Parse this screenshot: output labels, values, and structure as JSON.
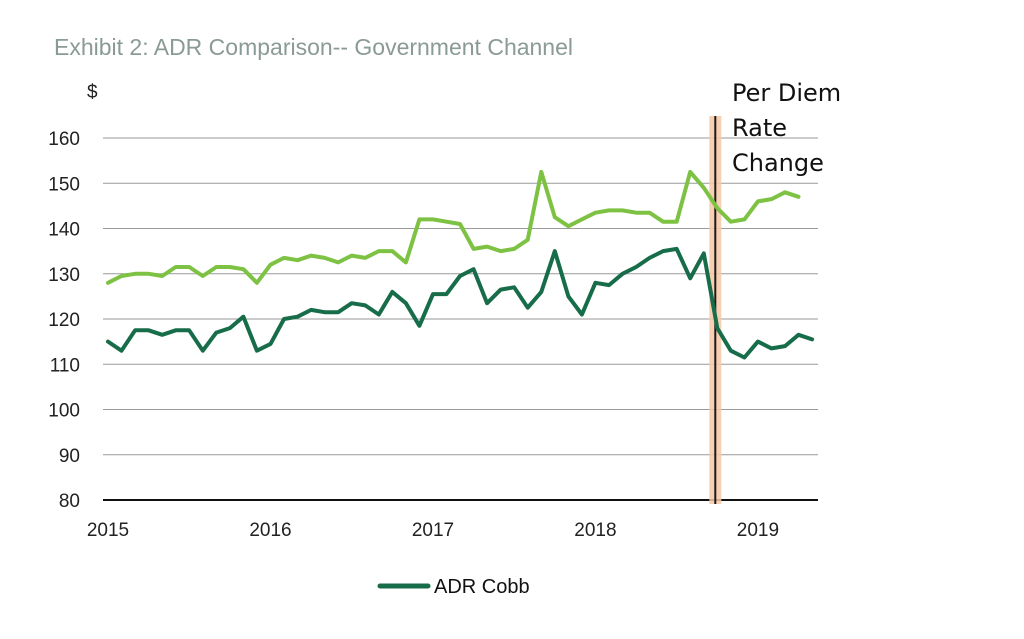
{
  "chart_data": {
    "type": "line",
    "title": "Exhibit 2: ADR Comparison-- Government Channel",
    "ylabel": "$",
    "xlabel": "",
    "ylim": [
      80,
      160
    ],
    "yticks": [
      80,
      90,
      100,
      110,
      120,
      130,
      140,
      150,
      160
    ],
    "xticks": [
      "2015",
      "2016",
      "2017",
      "2018",
      "2019"
    ],
    "grid": true,
    "legend_position": "bottom",
    "annotation": {
      "lines": [
        "Per Diem",
        "Rate",
        "Change"
      ],
      "at_month_index": 45
    },
    "series": [
      {
        "name": "",
        "color": "#7dc242",
        "values": [
          128,
          129.5,
          130,
          130,
          129.5,
          131.5,
          131.5,
          129.5,
          131.5,
          131.5,
          131,
          128,
          132,
          133.5,
          133,
          134,
          133.5,
          132.5,
          134,
          133.5,
          135,
          135,
          132.5,
          142,
          142,
          141.5,
          141,
          135.5,
          136,
          135,
          135.5,
          137.5,
          152.5,
          142.5,
          140.5,
          142,
          143.5,
          144,
          144,
          143.5,
          143.5,
          141.5,
          141.5,
          152.5,
          149,
          144.5,
          141.5,
          142,
          146,
          146.5,
          148,
          147
        ]
      },
      {
        "name": "ADR Cobb",
        "color": "#176c49",
        "values": [
          115,
          113,
          117.5,
          117.5,
          116.5,
          117.5,
          117.5,
          113,
          117,
          118,
          120.5,
          113,
          114.5,
          120,
          120.5,
          122,
          121.5,
          121.5,
          123.5,
          123,
          121,
          126,
          123.5,
          118.5,
          125.5,
          125.5,
          129.5,
          131,
          123.5,
          126.5,
          127,
          122.5,
          126,
          135,
          125,
          121,
          128,
          127.5,
          130,
          131.5,
          133.5,
          135,
          135.5,
          129,
          134.5,
          118,
          113,
          111.5,
          115,
          113.5,
          114,
          116.5,
          115.5
        ]
      }
    ]
  }
}
